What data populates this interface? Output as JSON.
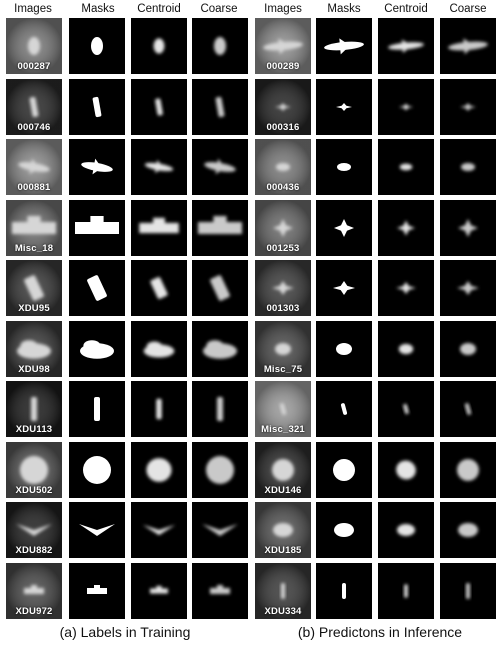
{
  "headers": {
    "left": [
      "Images",
      "Masks",
      "Centroid",
      "Coarse"
    ],
    "right": [
      "Images",
      "Masks",
      "Centroid",
      "Coarse"
    ]
  },
  "captions": {
    "left": "(a) Labels in Training",
    "right": "(b) Predictons in Inference"
  },
  "rows": [
    {
      "left_id": "000287",
      "right_id": "000289"
    },
    {
      "left_id": "000746",
      "right_id": "000316"
    },
    {
      "left_id": "000881",
      "right_id": "000436"
    },
    {
      "left_id": "Misc_18",
      "right_id": "001253"
    },
    {
      "left_id": "XDU95",
      "right_id": "001303"
    },
    {
      "left_id": "XDU98",
      "right_id": "Misc_75"
    },
    {
      "left_id": "XDU113",
      "right_id": "Misc_321"
    },
    {
      "left_id": "XDU502",
      "right_id": "XDU146"
    },
    {
      "left_id": "XDU882",
      "right_id": "XDU185"
    },
    {
      "left_id": "XDU972",
      "right_id": "XDU334"
    }
  ]
}
